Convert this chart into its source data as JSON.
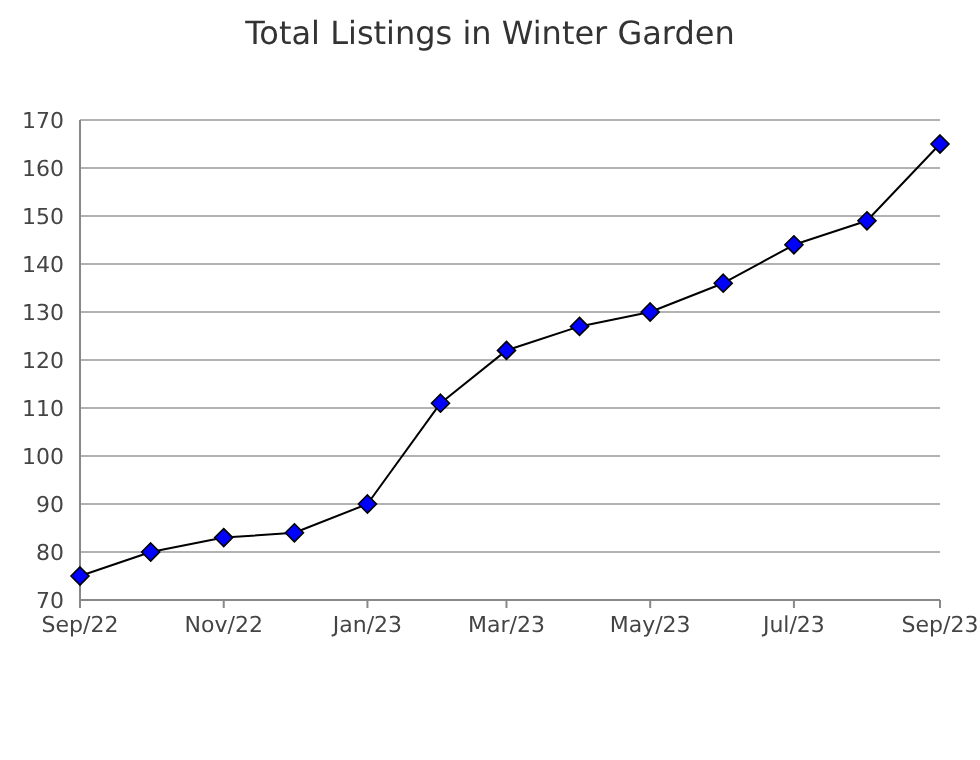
{
  "chart_data": {
    "type": "line",
    "title": "Total Listings in Winter Garden",
    "x": [
      "2022-09",
      "2022-10",
      "2022-11",
      "2022-12",
      "2023-01",
      "2023-02",
      "2023-03",
      "2023-04",
      "2023-05",
      "2023-06",
      "2023-07",
      "2023-08",
      "2023-09"
    ],
    "series": [
      {
        "color": "#0000ff",
        "values": [
          75,
          80,
          83,
          84,
          90,
          111,
          122,
          127,
          130,
          136,
          144,
          149,
          165
        ]
      }
    ],
    "xlim": [
      "2022-09",
      "2023-09"
    ],
    "xticks": [
      {
        "value": "2022-09",
        "label": "Sep/22"
      },
      {
        "value": "2022-11",
        "label": "Nov/22"
      },
      {
        "value": "2023-01",
        "label": "Jan/23"
      },
      {
        "value": "2023-03",
        "label": "Mar/23"
      },
      {
        "value": "2023-05",
        "label": "May/23"
      },
      {
        "value": "2023-07",
        "label": "Jul/23"
      },
      {
        "value": "2023-09",
        "label": "Sep/23"
      }
    ],
    "ylim": [
      70,
      170
    ],
    "yticks": [
      70,
      80,
      90,
      100,
      110,
      120,
      130,
      140,
      150,
      160,
      170
    ],
    "grid": "y",
    "marker": "diamond",
    "line_style": "solid"
  }
}
